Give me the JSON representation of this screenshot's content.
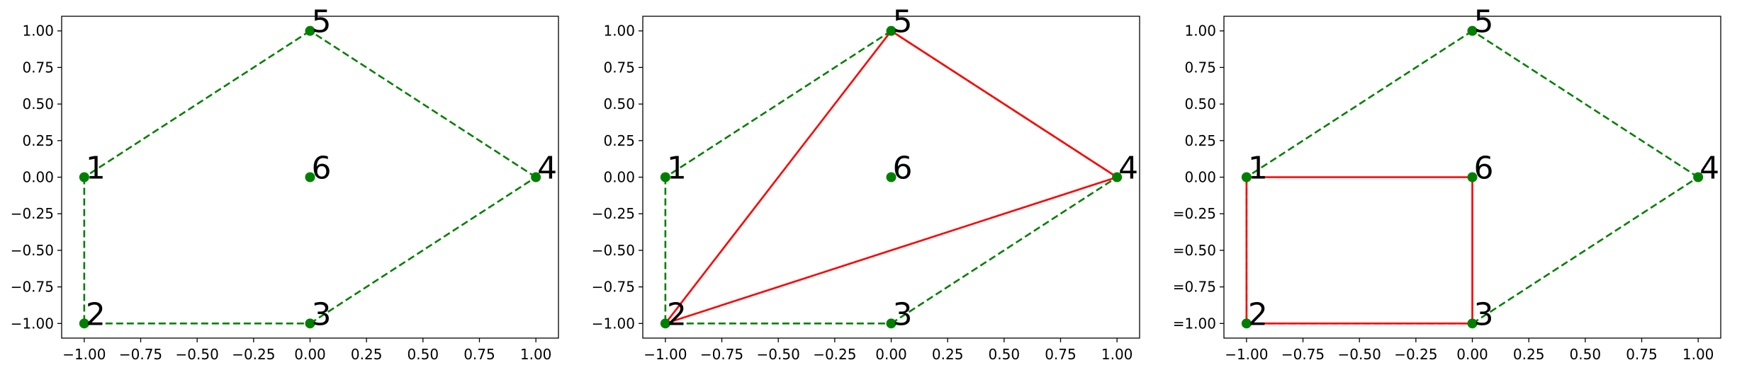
{
  "colors": {
    "hull": "#008000",
    "path": "#ff0000",
    "point": "#008000",
    "axes": "#000000",
    "background": "#ffffff"
  },
  "chart_data": [
    {
      "type": "scatter",
      "xlim": [
        -1.1,
        1.1
      ],
      "ylim": [
        -1.1,
        1.1
      ],
      "grid": false,
      "x_ticks": [
        -1.0,
        -0.75,
        -0.5,
        -0.25,
        0.0,
        0.25,
        0.5,
        0.75,
        1.0
      ],
      "y_ticks": [
        -1.0,
        -0.75,
        -0.5,
        -0.25,
        0.0,
        0.25,
        0.5,
        0.75,
        1.0
      ],
      "x_tick_labels": [
        "−1.00",
        "−0.75",
        "−0.50",
        "−0.25",
        "0.00",
        "0.25",
        "0.50",
        "0.75",
        "1.00"
      ],
      "y_tick_labels": [
        "−1.00",
        "−0.75",
        "−0.50",
        "−0.25",
        "0.00",
        "0.25",
        "0.50",
        "0.75",
        "1.00"
      ],
      "points": [
        {
          "label": "1",
          "x": -1,
          "y": 0
        },
        {
          "label": "2",
          "x": -1,
          "y": -1
        },
        {
          "label": "3",
          "x": 0,
          "y": -1
        },
        {
          "label": "4",
          "x": 1,
          "y": 0
        },
        {
          "label": "5",
          "x": 0,
          "y": 1
        },
        {
          "label": "6",
          "x": 0,
          "y": 0
        }
      ],
      "dashed_edges": [
        [
          "1",
          "2"
        ],
        [
          "2",
          "3"
        ],
        [
          "3",
          "4"
        ],
        [
          "4",
          "5"
        ],
        [
          "5",
          "1"
        ]
      ],
      "solid_edges": []
    },
    {
      "type": "scatter",
      "xlim": [
        -1.1,
        1.1
      ],
      "ylim": [
        -1.1,
        1.1
      ],
      "grid": false,
      "x_ticks": [
        -1.0,
        -0.75,
        -0.5,
        -0.25,
        0.0,
        0.25,
        0.5,
        0.75,
        1.0
      ],
      "y_ticks": [
        -1.0,
        -0.75,
        -0.5,
        -0.25,
        0.0,
        0.25,
        0.5,
        0.75,
        1.0
      ],
      "x_tick_labels": [
        "−1.00",
        "−0.75",
        "−0.50",
        "−0.25",
        "0.00",
        "0.25",
        "0.50",
        "0.75",
        "1.00"
      ],
      "y_tick_labels": [
        "−1.00",
        "−0.75",
        "−0.50",
        "−0.25",
        "0.00",
        "0.25",
        "0.50",
        "0.75",
        "1.00"
      ],
      "points": [
        {
          "label": "1",
          "x": -1,
          "y": 0
        },
        {
          "label": "2",
          "x": -1,
          "y": -1
        },
        {
          "label": "3",
          "x": 0,
          "y": -1
        },
        {
          "label": "4",
          "x": 1,
          "y": 0
        },
        {
          "label": "5",
          "x": 0,
          "y": 1
        },
        {
          "label": "6",
          "x": 0,
          "y": 0
        }
      ],
      "dashed_edges": [
        [
          "1",
          "2"
        ],
        [
          "2",
          "3"
        ],
        [
          "3",
          "4"
        ],
        [
          "4",
          "5"
        ],
        [
          "5",
          "1"
        ]
      ],
      "solid_edges": [
        [
          "2",
          "5"
        ],
        [
          "5",
          "4"
        ],
        [
          "4",
          "2"
        ]
      ]
    },
    {
      "type": "scatter",
      "xlim": [
        -1.1,
        1.1
      ],
      "ylim": [
        -1.1,
        1.1
      ],
      "grid": false,
      "x_ticks": [
        -1.0,
        -0.75,
        -0.5,
        -0.25,
        0.0,
        0.25,
        0.5,
        0.75,
        1.0
      ],
      "y_ticks": [
        -1.0,
        -0.75,
        -0.5,
        -0.25,
        0.0,
        0.25,
        0.5,
        0.75,
        1.0
      ],
      "x_tick_labels": [
        "−1.00",
        "−0.75",
        "−0.50",
        "−0.25",
        "0.00",
        "0.25",
        "0.50",
        "0.75",
        "1.00"
      ],
      "y_tick_labels": [
        "=1.00",
        "=0.75",
        "=0.50",
        "=0.25",
        "0.00",
        "0.25",
        "0.50",
        "0.75",
        "1.00"
      ],
      "points": [
        {
          "label": "1",
          "x": -1,
          "y": 0
        },
        {
          "label": "2",
          "x": -1,
          "y": -1
        },
        {
          "label": "3",
          "x": 0,
          "y": -1
        },
        {
          "label": "4",
          "x": 1,
          "y": 0
        },
        {
          "label": "5",
          "x": 0,
          "y": 1
        },
        {
          "label": "6",
          "x": 0,
          "y": 0
        }
      ],
      "dashed_edges": [
        [
          "1",
          "2"
        ],
        [
          "2",
          "3"
        ],
        [
          "3",
          "4"
        ],
        [
          "4",
          "5"
        ],
        [
          "5",
          "1"
        ]
      ],
      "solid_edges": [
        [
          "1",
          "6"
        ],
        [
          "6",
          "3"
        ],
        [
          "3",
          "2"
        ],
        [
          "2",
          "1"
        ]
      ]
    }
  ]
}
